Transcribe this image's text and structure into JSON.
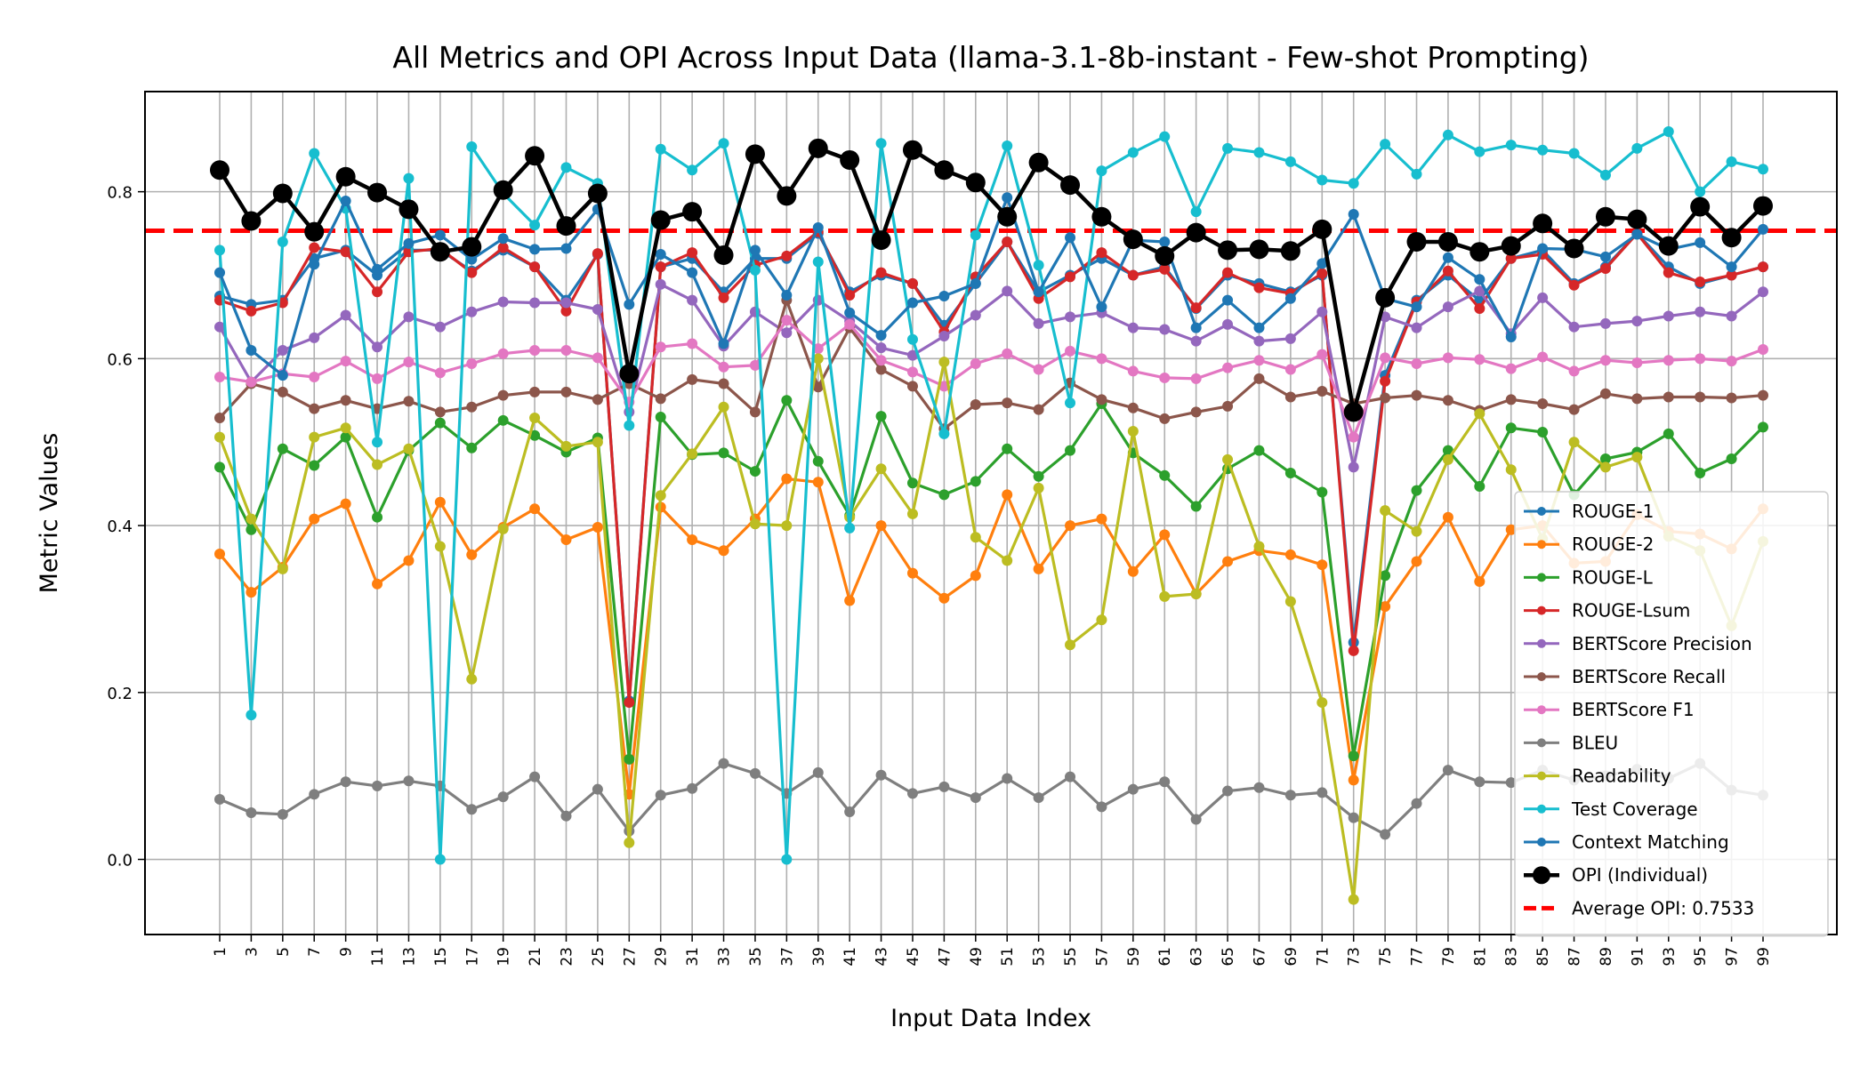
{
  "chart_data": {
    "type": "line",
    "title": "All Metrics and OPI Across Input Data (llama-3.1-8b-instant - Few-shot Prompting)",
    "xlabel": "Input Data Index",
    "ylabel": "Metric Values",
    "ylim": [
      -0.09,
      0.92
    ],
    "yticks": [
      "0.0",
      "0.2",
      "0.4",
      "0.6",
      "0.8"
    ],
    "x": [
      1,
      3,
      5,
      7,
      9,
      11,
      13,
      15,
      17,
      19,
      21,
      23,
      25,
      27,
      29,
      31,
      33,
      35,
      37,
      39,
      41,
      43,
      45,
      47,
      49,
      51,
      53,
      55,
      57,
      59,
      61,
      63,
      65,
      67,
      69,
      71,
      73,
      75,
      77,
      79,
      81,
      83,
      85,
      87,
      89,
      91,
      93,
      95,
      97,
      99
    ],
    "grid": true,
    "legend_position": "lower-right",
    "series": [
      {
        "name": "ROUGE-1",
        "color": "#1f77b4",
        "values": [
          0.675,
          0.665,
          0.67,
          0.72,
          0.73,
          0.7,
          0.73,
          0.73,
          0.705,
          0.73,
          0.71,
          0.67,
          0.725,
          0.19,
          0.71,
          0.72,
          0.68,
          0.72,
          0.72,
          0.75,
          0.68,
          0.7,
          0.69,
          0.64,
          0.69,
          0.74,
          0.68,
          0.7,
          0.72,
          0.7,
          0.71,
          0.66,
          0.7,
          0.69,
          0.68,
          0.7,
          0.26,
          0.58,
          0.67,
          0.7,
          0.67,
          0.72,
          0.73,
          0.69,
          0.71,
          0.75,
          0.71,
          0.69,
          0.7,
          0.71
        ]
      },
      {
        "name": "ROUGE-2",
        "color": "#ff7f0e",
        "values": [
          0.366,
          0.32,
          0.35,
          0.408,
          0.426,
          0.33,
          0.358,
          0.428,
          0.365,
          0.398,
          0.42,
          0.383,
          0.398,
          0.078,
          0.422,
          0.383,
          0.37,
          0.408,
          0.456,
          0.452,
          0.31,
          0.4,
          0.343,
          0.313,
          0.34,
          0.437,
          0.348,
          0.4,
          0.408,
          0.345,
          0.389,
          0.318,
          0.357,
          0.37,
          0.365,
          0.353,
          0.095,
          0.303,
          0.357,
          0.41,
          0.333,
          0.395,
          0.4,
          0.355,
          0.357,
          0.413,
          0.393,
          0.39,
          0.372,
          0.42
        ]
      },
      {
        "name": "ROUGE-L",
        "color": "#2ca02c",
        "values": [
          0.47,
          0.395,
          0.492,
          0.472,
          0.506,
          0.41,
          0.49,
          0.523,
          0.493,
          0.526,
          0.508,
          0.488,
          0.505,
          0.12,
          0.53,
          0.485,
          0.487,
          0.465,
          0.55,
          0.477,
          0.412,
          0.531,
          0.451,
          0.437,
          0.453,
          0.492,
          0.459,
          0.49,
          0.546,
          0.487,
          0.46,
          0.423,
          0.468,
          0.49,
          0.463,
          0.44,
          0.124,
          0.34,
          0.442,
          0.49,
          0.447,
          0.517,
          0.512,
          0.437,
          0.48,
          0.488,
          0.51,
          0.463,
          0.48,
          0.518
        ]
      },
      {
        "name": "ROUGE-Lsum",
        "color": "#d62728",
        "values": [
          0.67,
          0.657,
          0.667,
          0.733,
          0.728,
          0.68,
          0.728,
          0.732,
          0.703,
          0.733,
          0.71,
          0.657,
          0.726,
          0.188,
          0.71,
          0.727,
          0.673,
          0.712,
          0.723,
          0.752,
          0.676,
          0.703,
          0.69,
          0.632,
          0.698,
          0.74,
          0.672,
          0.698,
          0.727,
          0.7,
          0.707,
          0.661,
          0.703,
          0.685,
          0.678,
          0.702,
          0.25,
          0.573,
          0.668,
          0.705,
          0.66,
          0.72,
          0.725,
          0.688,
          0.708,
          0.75,
          0.703,
          0.692,
          0.7,
          0.71
        ]
      },
      {
        "name": "BERTScore Precision",
        "color": "#9467bd",
        "values": [
          0.638,
          0.572,
          0.61,
          0.625,
          0.652,
          0.614,
          0.65,
          0.638,
          0.656,
          0.668,
          0.667,
          0.667,
          0.659,
          0.536,
          0.689,
          0.67,
          0.615,
          0.656,
          0.631,
          0.67,
          0.645,
          0.613,
          0.604,
          0.627,
          0.652,
          0.681,
          0.642,
          0.65,
          0.655,
          0.637,
          0.635,
          0.621,
          0.641,
          0.621,
          0.624,
          0.656,
          0.47,
          0.65,
          0.637,
          0.662,
          0.681,
          0.63,
          0.673,
          0.638,
          0.642,
          0.645,
          0.651,
          0.656,
          0.651,
          0.68
        ]
      },
      {
        "name": "BERTScore Recall",
        "color": "#8c564b",
        "values": [
          0.529,
          0.57,
          0.56,
          0.54,
          0.55,
          0.54,
          0.549,
          0.536,
          0.542,
          0.556,
          0.56,
          0.56,
          0.551,
          0.57,
          0.552,
          0.575,
          0.57,
          0.536,
          0.67,
          0.566,
          0.637,
          0.587,
          0.567,
          0.516,
          0.545,
          0.547,
          0.539,
          0.571,
          0.551,
          0.541,
          0.528,
          0.536,
          0.543,
          0.576,
          0.554,
          0.561,
          0.546,
          0.553,
          0.556,
          0.55,
          0.538,
          0.551,
          0.546,
          0.539,
          0.558,
          0.552,
          0.554,
          0.554,
          0.553,
          0.556
        ]
      },
      {
        "name": "BERTScore F1",
        "color": "#e377c2",
        "values": [
          0.578,
          0.572,
          0.582,
          0.578,
          0.597,
          0.576,
          0.596,
          0.583,
          0.594,
          0.606,
          0.61,
          0.61,
          0.601,
          0.548,
          0.614,
          0.618,
          0.59,
          0.592,
          0.646,
          0.612,
          0.641,
          0.598,
          0.584,
          0.567,
          0.594,
          0.606,
          0.587,
          0.609,
          0.6,
          0.585,
          0.577,
          0.576,
          0.589,
          0.598,
          0.587,
          0.605,
          0.506,
          0.601,
          0.594,
          0.601,
          0.599,
          0.588,
          0.602,
          0.585,
          0.598,
          0.595,
          0.598,
          0.6,
          0.597,
          0.611
        ]
      },
      {
        "name": "BLEU",
        "color": "#7f7f7f",
        "values": [
          0.072,
          0.056,
          0.054,
          0.078,
          0.093,
          0.088,
          0.094,
          0.088,
          0.06,
          0.075,
          0.099,
          0.052,
          0.084,
          0.034,
          0.077,
          0.085,
          0.115,
          0.103,
          0.079,
          0.104,
          0.057,
          0.101,
          0.079,
          0.087,
          0.074,
          0.097,
          0.074,
          0.099,
          0.063,
          0.084,
          0.093,
          0.048,
          0.082,
          0.086,
          0.077,
          0.08,
          0.05,
          0.03,
          0.067,
          0.107,
          0.093,
          0.092,
          0.107,
          0.095,
          0.1,
          0.108,
          0.097,
          0.115,
          0.083,
          0.077
        ]
      },
      {
        "name": "Readability",
        "color": "#bcbd22",
        "values": [
          0.506,
          0.408,
          0.348,
          0.506,
          0.517,
          0.473,
          0.492,
          0.375,
          0.216,
          0.396,
          0.529,
          0.495,
          0.5,
          0.02,
          0.436,
          0.486,
          0.542,
          0.402,
          0.4,
          0.6,
          0.41,
          0.468,
          0.414,
          0.596,
          0.386,
          0.358,
          0.445,
          0.257,
          0.287,
          0.513,
          0.315,
          0.318,
          0.479,
          0.375,
          0.309,
          0.188,
          -0.048,
          0.418,
          0.393,
          0.479,
          0.534,
          0.467,
          0.384,
          0.5,
          0.47,
          0.482,
          0.387,
          0.37,
          0.28,
          0.381
        ]
      },
      {
        "name": "Test Coverage",
        "color": "#17becf",
        "values": [
          0.73,
          0.173,
          0.74,
          0.846,
          0.78,
          0.5,
          0.816,
          0.0,
          0.854,
          0.798,
          0.76,
          0.829,
          0.81,
          0.52,
          0.851,
          0.826,
          0.858,
          0.706,
          0.0,
          0.716,
          0.397,
          0.858,
          0.623,
          0.51,
          0.748,
          0.855,
          0.712,
          0.547,
          0.825,
          0.847,
          0.866,
          0.776,
          0.852,
          0.847,
          0.836,
          0.814,
          0.81,
          0.857,
          0.821,
          0.868,
          0.848,
          0.856,
          0.85,
          0.846,
          0.82,
          0.852,
          0.872,
          0.8,
          0.836,
          0.827
        ]
      },
      {
        "name": "Context Matching",
        "color": "#1f77b4",
        "values": [
          0.703,
          0.61,
          0.58,
          0.713,
          0.789,
          0.707,
          0.738,
          0.748,
          0.719,
          0.744,
          0.731,
          0.732,
          0.779,
          0.665,
          0.725,
          0.703,
          0.618,
          0.73,
          0.676,
          0.757,
          0.655,
          0.628,
          0.667,
          0.675,
          0.69,
          0.793,
          0.68,
          0.745,
          0.662,
          0.742,
          0.74,
          0.637,
          0.67,
          0.637,
          0.672,
          0.714,
          0.773,
          0.672,
          0.662,
          0.721,
          0.695,
          0.626,
          0.732,
          0.731,
          0.722,
          0.749,
          0.731,
          0.739,
          0.71,
          0.755
        ]
      },
      {
        "name": "OPI (Individual)",
        "color": "#000000",
        "values": [
          0.826,
          0.765,
          0.798,
          0.752,
          0.818,
          0.799,
          0.779,
          0.728,
          0.734,
          0.802,
          0.843,
          0.759,
          0.798,
          0.582,
          0.766,
          0.776,
          0.724,
          0.845,
          0.795,
          0.852,
          0.838,
          0.742,
          0.85,
          0.826,
          0.811,
          0.77,
          0.835,
          0.808,
          0.77,
          0.743,
          0.723,
          0.751,
          0.73,
          0.731,
          0.729,
          0.755,
          0.536,
          0.673,
          0.74,
          0.74,
          0.728,
          0.735,
          0.762,
          0.732,
          0.77,
          0.767,
          0.735,
          0.782,
          0.745,
          0.783
        ]
      }
    ],
    "average_line": {
      "name": "Average OPI: 0.7533",
      "value": 0.7533,
      "color": "#ff0000"
    }
  }
}
